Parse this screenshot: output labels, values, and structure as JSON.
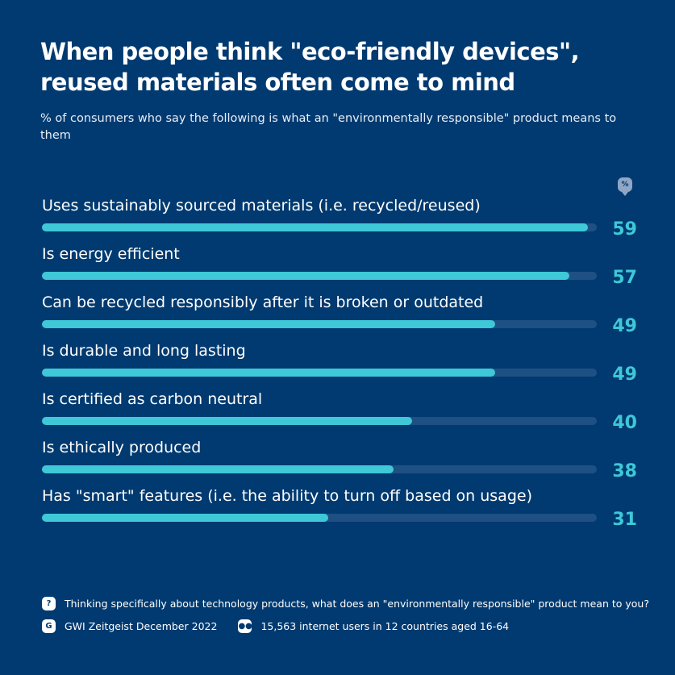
{
  "title": "When people think \"eco-friendly devices\", reused materials often come to mind",
  "subtitle": "% of consumers who say the following is what an \"environmentally responsible\" product means to them",
  "unit_badge": "%",
  "colors": {
    "background": "#013a70",
    "bar": "#3ec8d8",
    "track": "#1e5084"
  },
  "chart_data": {
    "type": "bar",
    "orientation": "horizontal",
    "categories": [
      "Uses sustainably sourced materials (i.e. recycled/reused)",
      "Is energy efficient",
      "Can be recycled responsibly after it is broken or outdated",
      "Is durable and long lasting",
      "Is certified as carbon neutral",
      "Is ethically produced",
      "Has \"smart\" features (i.e. the ability to turn off based on usage)"
    ],
    "values": [
      59,
      57,
      49,
      49,
      40,
      38,
      31
    ],
    "xlim": [
      0,
      60
    ]
  },
  "footer": {
    "question": "Thinking specifically about technology products, what does an \"environmentally responsible\" product mean to you?",
    "source": "GWI Zeitgeist December 2022",
    "sample": "15,563 internet users in 12 countries aged 16-64"
  }
}
